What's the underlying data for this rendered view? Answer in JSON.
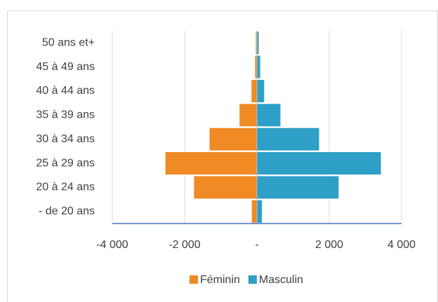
{
  "chart_data": {
    "type": "pyramid",
    "categories": [
      "- de 20 ans",
      "20 à 24 ans",
      "25 à 29 ans",
      "30 à 34 ans",
      "35 à 39 ans",
      "40 à 44 ans",
      "45 à 49 ans",
      "50 ans et+"
    ],
    "series": [
      {
        "name": "Féminin",
        "color": "#f08a24",
        "values": [
          -150,
          -1750,
          -2540,
          -1320,
          -490,
          -160,
          -60,
          -40
        ]
      },
      {
        "name": "Masculin",
        "color": "#2e9fc6",
        "values": [
          150,
          2270,
          3440,
          1730,
          660,
          210,
          100,
          60
        ]
      }
    ],
    "xlim": [
      -4000,
      4000
    ],
    "xticks": [
      {
        "value": -4000,
        "label": "-4 000"
      },
      {
        "value": -2000,
        "label": "-2 000"
      },
      {
        "value": 0,
        "label": "-"
      },
      {
        "value": 2000,
        "label": "2 000"
      },
      {
        "value": 4000,
        "label": "4 000"
      }
    ],
    "grid": true,
    "legend": "bottom"
  }
}
